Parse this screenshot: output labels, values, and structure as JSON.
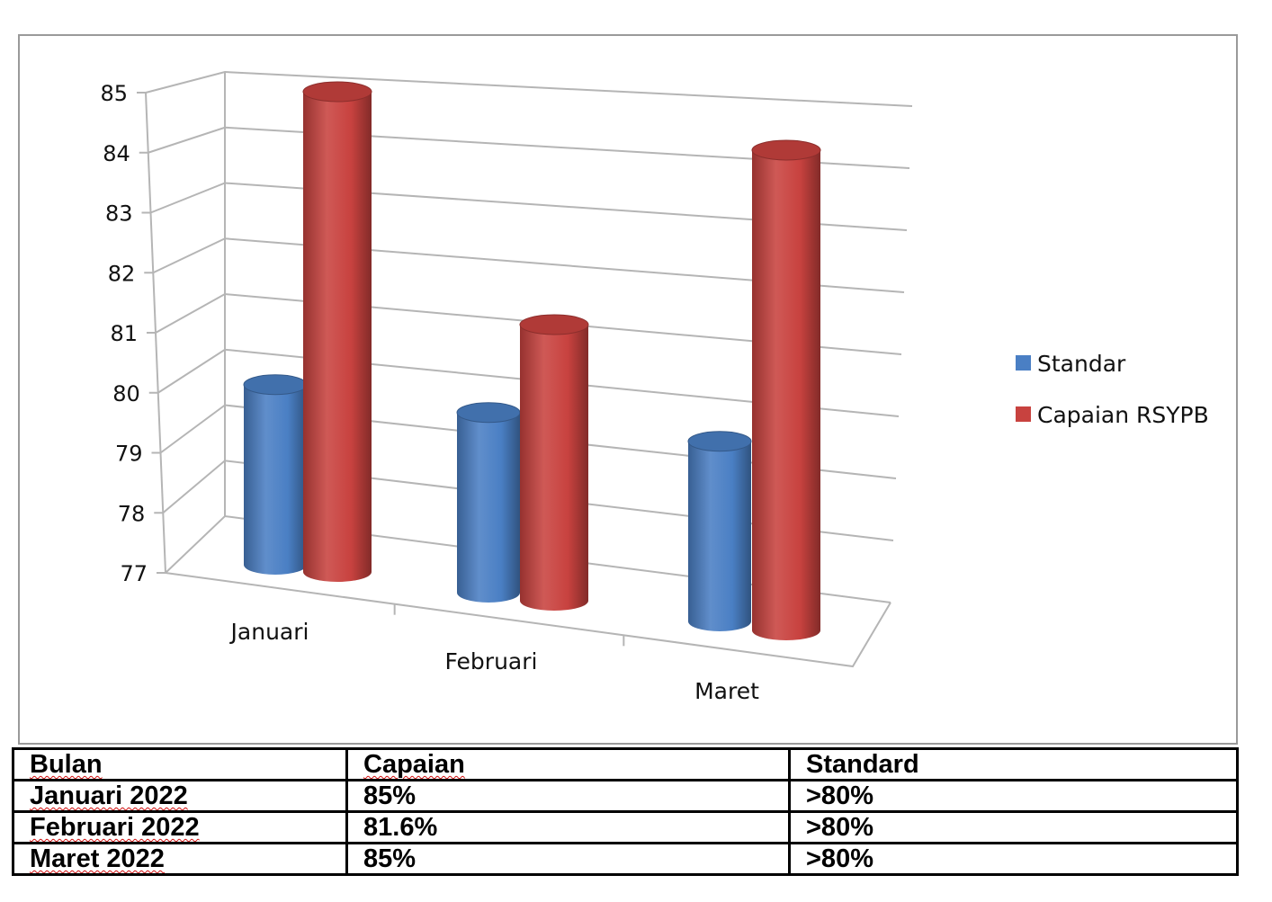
{
  "chart_data": {
    "type": "bar",
    "style": "3d-cylinder",
    "categories": [
      "Januari",
      "Februari",
      "Maret"
    ],
    "series": [
      {
        "name": "Standar",
        "color": "#4a7fc4",
        "values": [
          80,
          80,
          80
        ]
      },
      {
        "name": "Capaian RSYPB",
        "color": "#c8423f",
        "values": [
          85,
          81.6,
          85
        ]
      }
    ],
    "ylim": [
      77,
      85
    ],
    "yticks": [
      "77",
      "78",
      "79",
      "80",
      "81",
      "82",
      "83",
      "84",
      "85"
    ],
    "grid": true,
    "legend_position": "right",
    "title": "",
    "xlabel": "",
    "ylabel": ""
  },
  "table": {
    "headers": [
      "Bulan",
      "Capaian",
      "Standard"
    ],
    "rows": [
      [
        "Januari 2022",
        "85%",
        ">80%"
      ],
      [
        "Februari 2022",
        "81.6%",
        ">80%"
      ],
      [
        "Maret 2022",
        "85%",
        ">80%"
      ]
    ]
  }
}
